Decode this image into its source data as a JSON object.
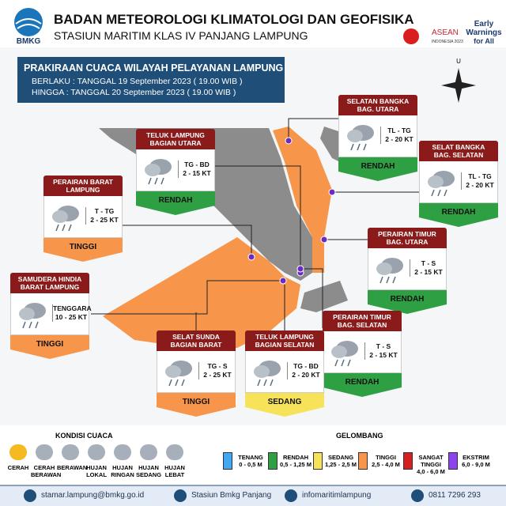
{
  "header": {
    "logo": "BMKG",
    "agency": "BADAN METEOROLOGI KLIMATOLOGI DAN GEOFISIKA",
    "station": "STASIUN MARITIM KLAS IV PANJANG LAMPUNG",
    "asean": "ASEAN",
    "asean_sub": "INDONESIA 2023",
    "early": [
      "Early",
      "Warnings",
      "for All"
    ]
  },
  "info": {
    "title": "PRAKIRAAN CUACA WILAYAH PELAYANAN LAMPUNG",
    "from": "BERLAKU : TANGGAL 19 September 2023 ( 19.00 WIB )",
    "to": "HINGGA : TANGGAL 20 September 2023 ( 19.00 WIB )"
  },
  "compass": "U",
  "regions": [
    {
      "title": [
        "SELATAN BANGKA",
        "BAG. UTARA"
      ],
      "direction": "TL - TG",
      "speed": "2 - 20 KT",
      "wave": "RENDAH"
    },
    {
      "title": [
        "TELUK LAMPUNG",
        "BAGIAN UTARA"
      ],
      "direction": "TG - BD",
      "speed": "2 - 15 KT",
      "wave": "RENDAH"
    },
    {
      "title": [
        "SELAT BANGKA",
        "BAG. SELATAN"
      ],
      "direction": "TL - TG",
      "speed": "2 - 20 KT",
      "wave": "RENDAH"
    },
    {
      "title": [
        "PERAIRAN BARAT",
        "LAMPUNG"
      ],
      "direction": "T - TG",
      "speed": "2 - 25 KT",
      "wave": "TINGGI"
    },
    {
      "title": [
        "PERAIRAN TIMUR",
        "BAG. UTARA"
      ],
      "direction": "T - S",
      "speed": "2 - 15 KT",
      "wave": "RENDAH"
    },
    {
      "title": [
        "SAMUDERA HINDIA",
        "BARAT LAMPUNG"
      ],
      "direction": "TENGGARA",
      "speed": "10 - 25 KT",
      "wave": "TINGGI"
    },
    {
      "title": [
        "PERAIRAN TIMUR",
        "BAG. SELATAN"
      ],
      "direction": "T - S",
      "speed": "2 - 15 KT",
      "wave": "RENDAH"
    },
    {
      "title": [
        "SELAT SUNDA",
        "BAGIAN BARAT"
      ],
      "direction": "TG - S",
      "speed": "2 - 25 KT",
      "wave": "TINGGI"
    },
    {
      "title": [
        "TELUK LAMPUNG",
        "BAGIAN SELATAN"
      ],
      "direction": "TG - BD",
      "speed": "2 - 20 KT",
      "wave": "SEDANG"
    }
  ],
  "legend": {
    "weather_title": "KONDISI CUACA",
    "weather": [
      [
        "CERAH"
      ],
      [
        "CERAH",
        "BERAWAN"
      ],
      [
        "BERAWAN"
      ],
      [
        "HUJAN",
        "LOKAL"
      ],
      [
        "HUJAN",
        "RINGAN"
      ],
      [
        "HUJAN",
        "SEDANG"
      ],
      [
        "HUJAN",
        "LEBAT"
      ]
    ],
    "wave_title": "GELOMBANG",
    "waves": [
      {
        "label": "TENANG",
        "range": "0 - 0,5 M",
        "color": "#3fa9f5"
      },
      {
        "label": "RENDAH",
        "range": "0,5 - 1,25 M",
        "color": "#2ea043"
      },
      {
        "label": "SEDANG",
        "range": "1,25 - 2,5 M",
        "color": "#f7e35a"
      },
      {
        "label": "TINGGI",
        "range": "2,5 - 4,0 M",
        "color": "#f7964a"
      },
      {
        "label": "SANGAT TINGGI",
        "range": "4,0 - 6,0 M",
        "color": "#d81e1e"
      },
      {
        "label": "EKSTRIM",
        "range": "6,0 - 9,0 M",
        "color": "#8e44ec"
      }
    ]
  },
  "footer": [
    "stamar.lampung@bmkg.go.id",
    "Stasiun Bmkg Panjang",
    "infomaritimlampung",
    "0811 7296 293"
  ]
}
